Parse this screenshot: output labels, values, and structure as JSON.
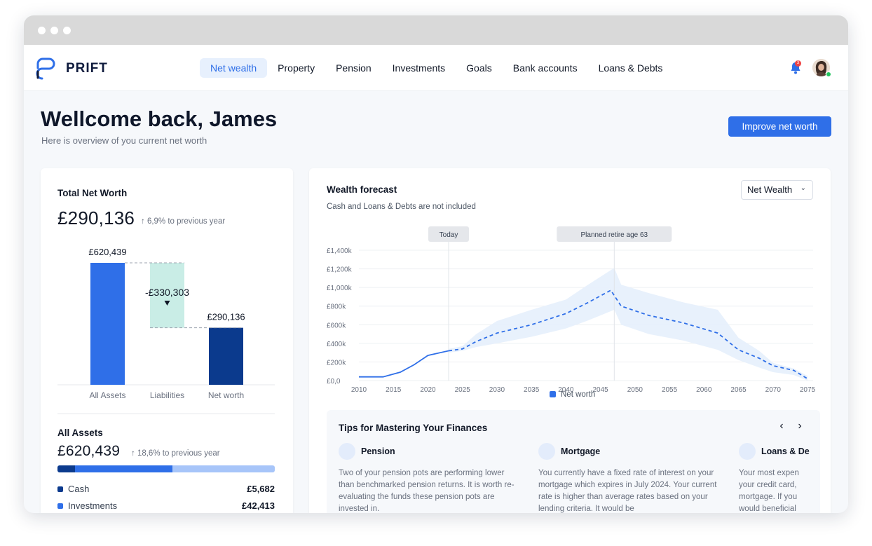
{
  "brand": {
    "name": "PRIFT"
  },
  "nav": {
    "items": [
      {
        "label": "Net wealth",
        "active": true
      },
      {
        "label": "Property",
        "active": false
      },
      {
        "label": "Pension",
        "active": false
      },
      {
        "label": "Investments",
        "active": false
      },
      {
        "label": "Goals",
        "active": false
      },
      {
        "label": "Bank accounts",
        "active": false
      },
      {
        "label": "Loans & Debts",
        "active": false
      }
    ],
    "notification_count": "3",
    "icons": {
      "notifications": "bell-icon",
      "avatar": "user-avatar"
    }
  },
  "header": {
    "title": "Wellcome back, James",
    "subtitle": "Here is overview of you current net worth",
    "cta_label": "Improve net worth"
  },
  "net_worth": {
    "title": "Total Net Worth",
    "value": "£290,136",
    "trend": "↑ 6,9% to previous year",
    "waterfall": {
      "categories": [
        "All Assets",
        "Liabilities",
        "Net worth"
      ],
      "value_labels": [
        "£620,439",
        "-£330,303",
        "£290,136"
      ],
      "values": [
        620439,
        -330303,
        290136
      ]
    }
  },
  "all_assets": {
    "title": "All Assets",
    "value": "£620,439",
    "trend": "↑ 18,6% to previous year",
    "breakdown_fractions": [
      0.08,
      0.45,
      0.47
    ],
    "items": [
      {
        "name": "Cash",
        "value": "£5,682",
        "color": "#0b3a8d"
      },
      {
        "name": "Investments",
        "value": "£42,413",
        "color": "#2f6fe8"
      }
    ]
  },
  "forecast": {
    "title": "Wealth forecast",
    "subtitle": "Cash and Loans & Debts are not included",
    "dropdown_value": "Net Wealth",
    "today_label": "Today",
    "retire_label": "Planned retire age 63",
    "legend_label": "Net worth",
    "colors": {
      "line": "#2f6fe8",
      "band": "#e6effc",
      "accent": "#2f6fe8"
    }
  },
  "chart_data": {
    "type": "line",
    "title": "Wealth forecast",
    "ylim": [
      0,
      1400000
    ],
    "y_ticks": [
      "£0,0",
      "£200k",
      "£400k",
      "£600k",
      "£800k",
      "£1,000k",
      "£1,200k",
      "£1,400k"
    ],
    "y_tick_values": [
      0,
      200000,
      400000,
      600000,
      800000,
      1000000,
      1200000,
      1400000
    ],
    "x_ticks": [
      "2010",
      "2015",
      "2020",
      "2025",
      "2030",
      "2035",
      "2040",
      "2045",
      "2050",
      "2055",
      "2060",
      "2065",
      "2070",
      "2075"
    ],
    "xlim": [
      2010,
      2075
    ],
    "grid": true,
    "legend_position": "bottom",
    "markers": [
      {
        "label": "Today",
        "x": 2023
      },
      {
        "label": "Planned retire age 63",
        "x": 2047
      }
    ],
    "series": [
      {
        "name": "Net worth",
        "x": [
          2010,
          2013.5,
          2016,
          2018,
          2020,
          2023,
          2025,
          2027,
          2030,
          2035,
          2040,
          2043,
          2046.5,
          2048,
          2052,
          2057,
          2062,
          2065,
          2068,
          2070,
          2073,
          2075
        ],
        "y": [
          40000,
          40000,
          90000,
          170000,
          270000,
          320000,
          340000,
          420000,
          510000,
          600000,
          720000,
          830000,
          970000,
          800000,
          700000,
          620000,
          510000,
          330000,
          240000,
          160000,
          110000,
          20000
        ]
      }
    ],
    "confidence_band": {
      "x": [
        2023,
        2025,
        2027,
        2030,
        2035,
        2040,
        2043,
        2047,
        2048,
        2052,
        2057,
        2062,
        2065,
        2068,
        2070,
        2073,
        2075
      ],
      "upper": [
        340000,
        370000,
        500000,
        640000,
        760000,
        870000,
        1020000,
        1210000,
        1030000,
        940000,
        840000,
        760000,
        460000,
        320000,
        190000,
        130000,
        50000
      ],
      "lower": [
        300000,
        320000,
        360000,
        400000,
        470000,
        560000,
        640000,
        760000,
        600000,
        500000,
        430000,
        330000,
        220000,
        140000,
        90000,
        60000,
        0
      ]
    }
  },
  "tips": {
    "title": "Tips for Mastering Your Finances",
    "prev_label": "‹",
    "next_label": "›",
    "items": [
      {
        "title": "Pension",
        "body": "Two of your pension pots are performing lower than benchmarked pension returns. It is worth re-evaluating the funds these pension pots are invested in."
      },
      {
        "title": "Mortgage",
        "body": "You currently have a fixed rate of interest on your mortgage which expires in July 2024. Your current rate is higher than average rates based on your lending criteria. It would be"
      },
      {
        "title": "Loans & De",
        "body": "Your most expen your credit card, mortgage. If you would beneficial"
      }
    ]
  }
}
